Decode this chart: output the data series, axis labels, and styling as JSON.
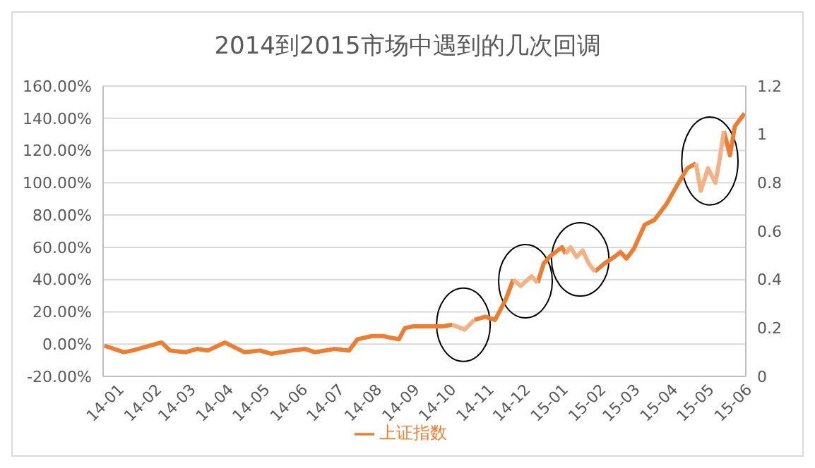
{
  "chart_data": {
    "type": "line",
    "title": "2014到2015市场中遇到的几次回调",
    "x": [
      "2014-01-02",
      "2014-01-18",
      "2014-01-25",
      "2014-02-18",
      "2014-02-25",
      "2014-03-10",
      "2014-03-19",
      "2014-03-28",
      "2014-04-11",
      "2014-04-27",
      "2014-05-10",
      "2014-05-19",
      "2014-06-05",
      "2014-06-16",
      "2014-06-24",
      "2014-07-10",
      "2014-07-22",
      "2014-07-29",
      "2014-08-10",
      "2014-08-19",
      "2014-08-25",
      "2014-09-01",
      "2014-09-06",
      "2014-09-13",
      "2014-10-07",
      "2014-10-15",
      "2014-10-25",
      "2014-11-02",
      "2014-11-11",
      "2014-11-19",
      "2014-11-28",
      "2014-12-04",
      "2014-12-10",
      "2014-12-19",
      "2014-12-24",
      "2014-12-29",
      "2015-01-04",
      "2015-01-13",
      "2015-01-16",
      "2015-01-20",
      "2015-01-25",
      "2015-01-30",
      "2015-02-04",
      "2015-02-09",
      "2015-02-17",
      "2015-02-25",
      "2015-03-02",
      "2015-03-07",
      "2015-03-13",
      "2015-03-22",
      "2015-03-30",
      "2015-04-09",
      "2015-04-18",
      "2015-04-26",
      "2015-05-03",
      "2015-05-07",
      "2015-05-13",
      "2015-05-19",
      "2015-05-22",
      "2015-05-26",
      "2015-05-31",
      "2015-06-04",
      "2015-06-12"
    ],
    "series": [
      {
        "name": "上证指数",
        "color": "#ed7d31",
        "values": [
          -1,
          -5,
          -4,
          1,
          -4,
          -5,
          -3,
          -4,
          1,
          -5,
          -4,
          -6,
          -4,
          -3,
          -5,
          -3,
          -4,
          3,
          5,
          5,
          4,
          3,
          10,
          11,
          11,
          12,
          null,
          15,
          17,
          15,
          28,
          40,
          null,
          null,
          38,
          50,
          55,
          60,
          56,
          null,
          null,
          null,
          null,
          45,
          50,
          54,
          57,
          53,
          59,
          74,
          77,
          87,
          99,
          109,
          112,
          null,
          null,
          null,
          null,
          132,
          117,
          135,
          143
        ]
      },
      {
        "color": "#f4b183",
        "values": [
          null,
          null,
          null,
          null,
          null,
          null,
          null,
          null,
          null,
          null,
          null,
          null,
          null,
          null,
          null,
          null,
          null,
          null,
          null,
          null,
          null,
          null,
          null,
          null,
          null,
          12,
          9,
          15,
          null,
          null,
          null,
          40,
          36,
          42,
          38,
          null,
          null,
          null,
          56,
          60,
          54,
          58,
          50,
          45,
          null,
          null,
          null,
          null,
          null,
          null,
          null,
          null,
          null,
          null,
          112,
          95,
          109,
          100,
          112,
          132,
          null,
          null,
          null
        ]
      }
    ],
    "xlim": [
      "2014-01-01",
      "2015-06-13"
    ],
    "xticks": [
      {
        "value": "2014-01-01",
        "label": "14-01"
      },
      {
        "value": "2014-02-01",
        "label": "14-02"
      },
      {
        "value": "2014-03-01",
        "label": "14-03"
      },
      {
        "value": "2014-04-01",
        "label": "14-04"
      },
      {
        "value": "2014-05-01",
        "label": "14-05"
      },
      {
        "value": "2014-06-01",
        "label": "14-06"
      },
      {
        "value": "2014-07-01",
        "label": "14-07"
      },
      {
        "value": "2014-08-01",
        "label": "14-08"
      },
      {
        "value": "2014-09-01",
        "label": "14-09"
      },
      {
        "value": "2014-10-01",
        "label": "14-10"
      },
      {
        "value": "2014-11-01",
        "label": "14-11"
      },
      {
        "value": "2014-12-01",
        "label": "14-12"
      },
      {
        "value": "2015-01-01",
        "label": "15-01"
      },
      {
        "value": "2015-02-01",
        "label": "15-02"
      },
      {
        "value": "2015-03-01",
        "label": "15-03"
      },
      {
        "value": "2015-04-01",
        "label": "15-04"
      },
      {
        "value": "2015-05-01",
        "label": "15-05"
      },
      {
        "value": "2015-06-01",
        "label": "15-06"
      }
    ],
    "ylim": [
      -20,
      160
    ],
    "yticks": [
      {
        "value": -20,
        "label": "-20.00%"
      },
      {
        "value": 0,
        "label": "0.00%"
      },
      {
        "value": 20,
        "label": "20.00%"
      },
      {
        "value": 40,
        "label": "40.00%"
      },
      {
        "value": 60,
        "label": "60.00%"
      },
      {
        "value": 80,
        "label": "80.00%"
      },
      {
        "value": 100,
        "label": "100.00%"
      },
      {
        "value": 120,
        "label": "120.00%"
      },
      {
        "value": 140,
        "label": "140.00%"
      },
      {
        "value": 160,
        "label": "160.00%"
      }
    ],
    "y2lim": [
      0,
      1.2
    ],
    "y2ticks": [
      0,
      0.2,
      0.4,
      0.6,
      0.8,
      1,
      1.2
    ],
    "grid": "y",
    "legend": "bottom",
    "marker": "none",
    "line_style": "solid"
  }
}
